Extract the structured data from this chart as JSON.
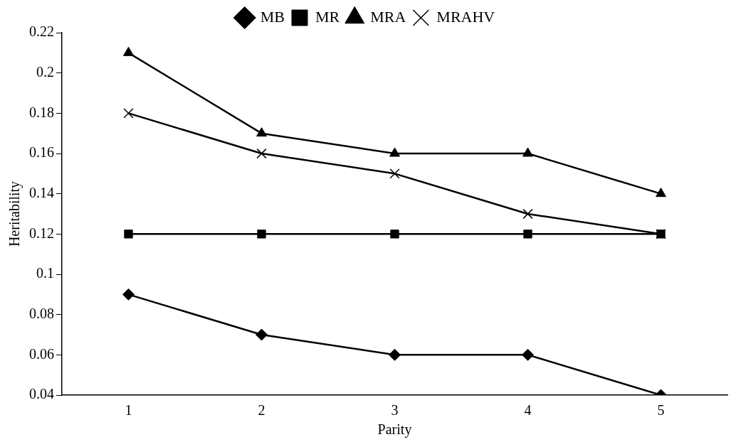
{
  "chart_data": {
    "type": "line",
    "xlabel": "Parity",
    "ylabel": "Heritability",
    "categories": [
      "1",
      "2",
      "3",
      "4",
      "5"
    ],
    "series": [
      {
        "name": "MB",
        "color": "#000000",
        "marker": "diamond",
        "values": [
          0.09,
          0.07,
          0.06,
          0.06,
          0.04
        ]
      },
      {
        "name": "MR",
        "color": "#000000",
        "marker": "square",
        "values": [
          0.12,
          0.12,
          0.12,
          0.12,
          0.12
        ]
      },
      {
        "name": "MRA",
        "color": "#000000",
        "marker": "triangle",
        "values": [
          0.21,
          0.17,
          0.16,
          0.16,
          0.14
        ]
      },
      {
        "name": "MRAHV",
        "color": "#000000",
        "marker": "cross",
        "values": [
          0.18,
          0.16,
          0.15,
          0.13,
          0.12
        ]
      }
    ],
    "ylim": [
      0.04,
      0.22
    ],
    "yticks": [
      0.04,
      0.06,
      0.08,
      0.1,
      0.12,
      0.14,
      0.16,
      0.18,
      0.2,
      0.22
    ],
    "grid": false,
    "legend": "top",
    "line_style": "solid"
  }
}
